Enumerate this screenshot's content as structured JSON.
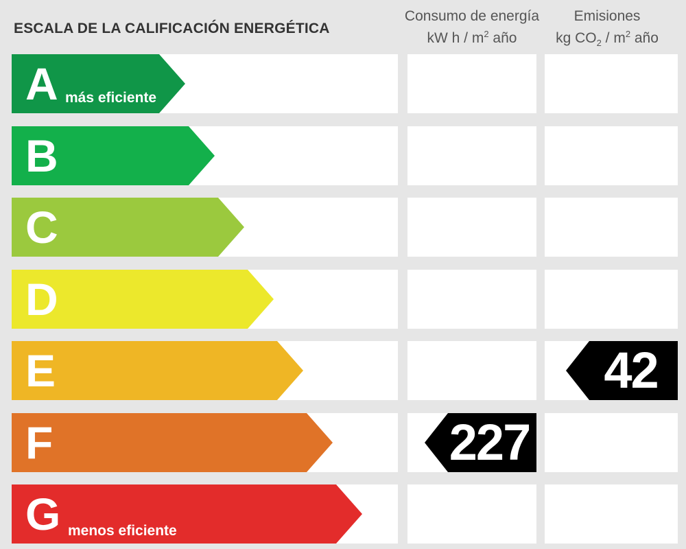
{
  "header": {
    "title": "ESCALA DE LA CALIFICACIÓN ENERGÉTICA",
    "energy_line1": "Consumo de energía",
    "energy_unit_a": "kW h  / m",
    "energy_unit_sup": "2",
    "energy_unit_b": " año",
    "emissions_line1": "Emisiones",
    "emissions_unit_a": "kg CO",
    "emissions_unit_sub": "2",
    "emissions_unit_b": "  / m",
    "emissions_unit_sup": "2",
    "emissions_unit_c": " año"
  },
  "ratings": [
    {
      "letter": "A",
      "label": "más eficiente",
      "color": "#109648"
    },
    {
      "letter": "B",
      "label": "",
      "color": "#13b04b"
    },
    {
      "letter": "C",
      "label": "",
      "color": "#9bc93e"
    },
    {
      "letter": "D",
      "label": "",
      "color": "#ece82c"
    },
    {
      "letter": "E",
      "label": "",
      "color": "#efb625"
    },
    {
      "letter": "F",
      "label": "",
      "color": "#e07328"
    },
    {
      "letter": "G",
      "label": "menos eficiente",
      "color": "#e32c2b"
    }
  ],
  "energy_consumption": {
    "value": "227",
    "rating": "F"
  },
  "emissions": {
    "value": "42",
    "rating": "E"
  },
  "marker_color": "#000000"
}
